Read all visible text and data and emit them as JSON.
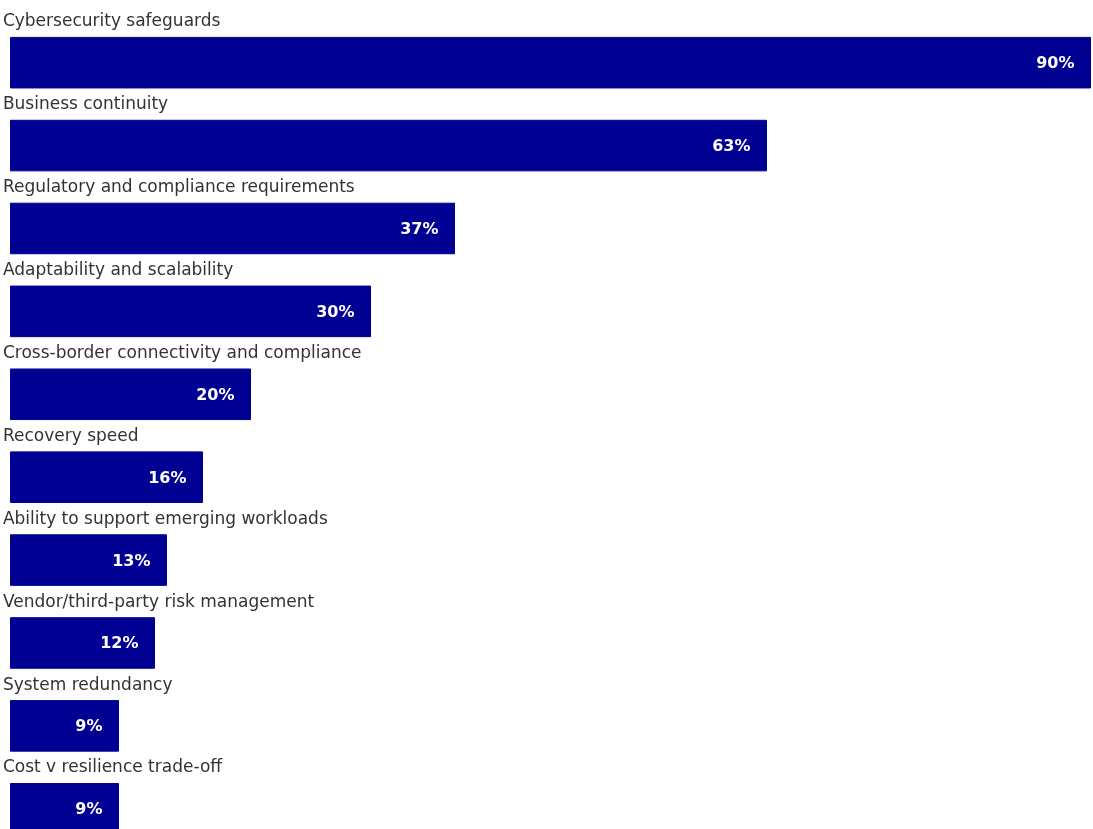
{
  "chart_data": {
    "type": "bar",
    "orientation": "horizontal",
    "categories": [
      "Cybersecurity safeguards",
      "Business continuity",
      "Regulatory and compliance requirements",
      "Adaptability and scalability",
      "Cross-border connectivity and compliance",
      "Recovery speed",
      "Ability to support emerging workloads",
      "Vendor/third-party risk management",
      "System redundancy",
      "Cost v resilience trade-off"
    ],
    "values": [
      90,
      63,
      37,
      30,
      20,
      16,
      13,
      12,
      9,
      9
    ],
    "value_labels": [
      "90%",
      "63%",
      "37%",
      "30%",
      "20%",
      "16%",
      "13%",
      "12%",
      "9%",
      "9%"
    ],
    "color": "#000093",
    "xlim": [
      0,
      90
    ]
  }
}
